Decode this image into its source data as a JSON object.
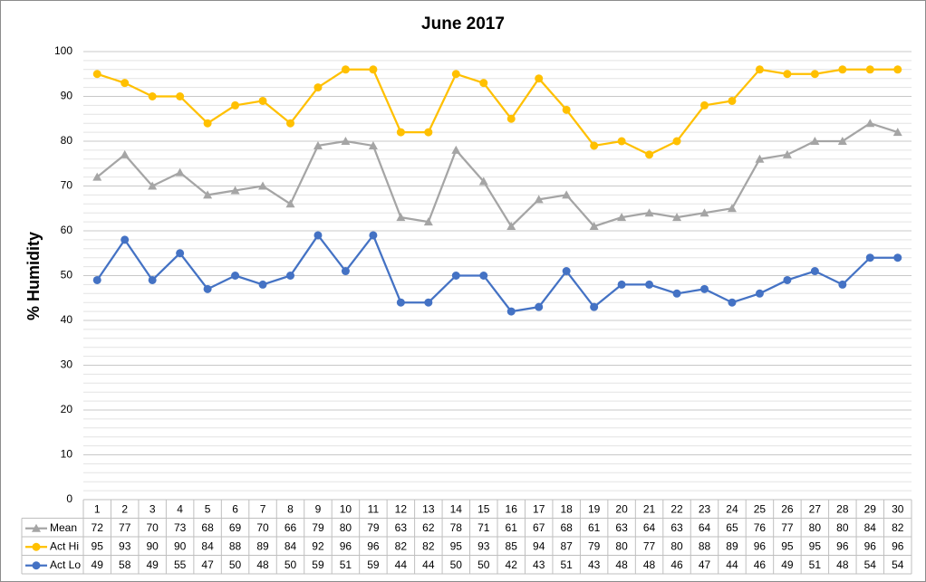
{
  "chart_data": {
    "type": "line",
    "title": "June 2017",
    "y_label": "% Humidity",
    "categories": [
      "1",
      "2",
      "3",
      "4",
      "5",
      "6",
      "7",
      "8",
      "9",
      "10",
      "11",
      "12",
      "13",
      "14",
      "15",
      "16",
      "17",
      "18",
      "19",
      "20",
      "21",
      "22",
      "23",
      "24",
      "25",
      "26",
      "27",
      "28",
      "29",
      "30"
    ],
    "series": [
      {
        "name": "Mean",
        "color": "#a5a5a5",
        "marker": "triangle",
        "values": [
          72,
          77,
          70,
          73,
          68,
          69,
          70,
          66,
          79,
          80,
          79,
          63,
          62,
          78,
          71,
          61,
          67,
          68,
          61,
          63,
          64,
          63,
          64,
          65,
          76,
          77,
          80,
          80,
          84,
          82
        ]
      },
      {
        "name": "Act Hi",
        "color": "#ffc000",
        "marker": "circle",
        "values": [
          95,
          93,
          90,
          90,
          84,
          88,
          89,
          84,
          92,
          96,
          96,
          82,
          82,
          95,
          93,
          85,
          94,
          87,
          79,
          80,
          77,
          80,
          88,
          89,
          96,
          95,
          95,
          96,
          96,
          96
        ]
      },
      {
        "name": "Act Lo",
        "color": "#4472c4",
        "marker": "circle",
        "values": [
          49,
          58,
          49,
          55,
          47,
          50,
          48,
          50,
          59,
          51,
          59,
          44,
          44,
          50,
          50,
          42,
          43,
          51,
          43,
          48,
          48,
          46,
          47,
          44,
          46,
          49,
          51,
          48,
          54,
          54
        ]
      }
    ],
    "ylim": [
      0,
      100
    ],
    "yticks": [
      0,
      10,
      20,
      30,
      40,
      50,
      60,
      70,
      80,
      90,
      100
    ],
    "grid": true,
    "minor_grid": true,
    "data_table": true
  }
}
